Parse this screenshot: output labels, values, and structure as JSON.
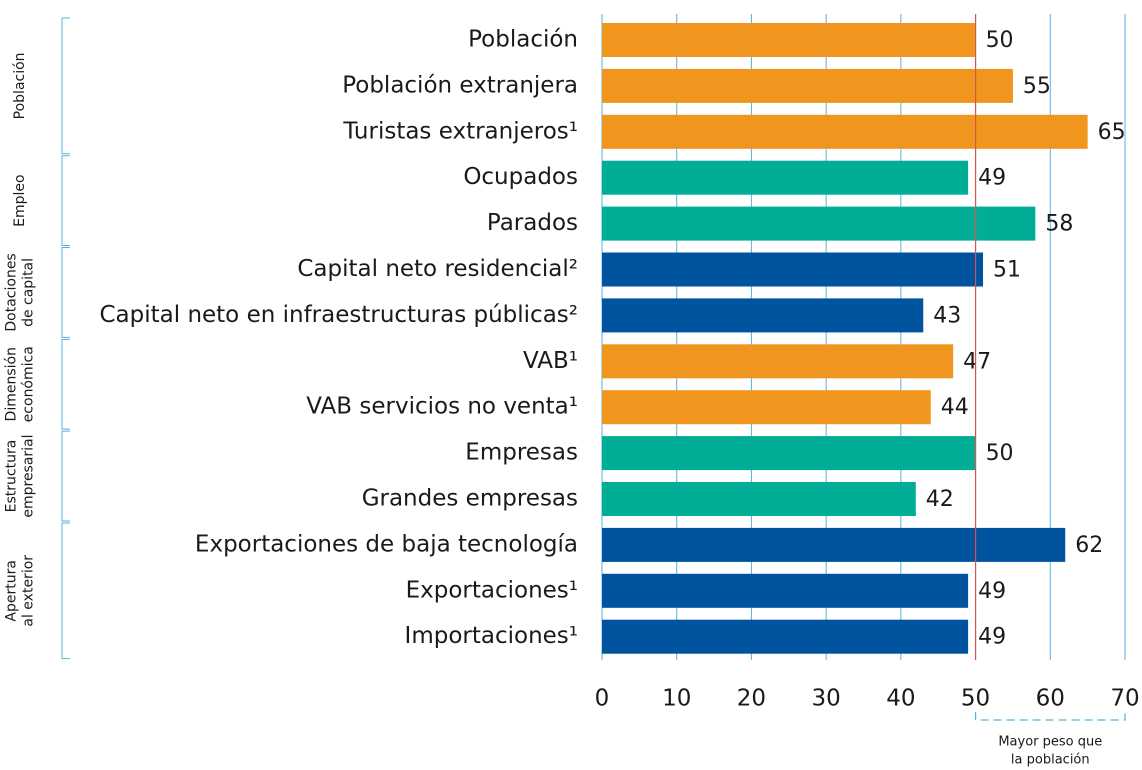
{
  "chart_data": {
    "type": "bar",
    "orientation": "horizontal",
    "groups": [
      {
        "label": [
          "Población"
        ],
        "color": "#f0961e",
        "categories": [
          "Población",
          "Población extranjera",
          "Turistas extranjeros¹"
        ],
        "values": [
          50,
          55,
          65
        ]
      },
      {
        "label": [
          "Empleo"
        ],
        "color": "#00ae98",
        "categories": [
          "Ocupados",
          "Parados"
        ],
        "values": [
          49,
          58
        ]
      },
      {
        "label": [
          "Dotaciones",
          "de capital"
        ],
        "color": "#00539e",
        "categories": [
          "Capital neto residencial²",
          "Capital neto en infraestructuras públicas²"
        ],
        "values": [
          51,
          43
        ]
      },
      {
        "label": [
          "Dimensión",
          "económica"
        ],
        "color": "#f0961e",
        "categories": [
          "VAB¹",
          "VAB servicios no venta¹"
        ],
        "values": [
          47,
          44
        ]
      },
      {
        "label": [
          "Estructura",
          "empresarial"
        ],
        "color": "#00ae98",
        "categories": [
          "Empresas",
          "Grandes empresas"
        ],
        "values": [
          50,
          42
        ]
      },
      {
        "label": [
          "Apertura",
          "al exterior"
        ],
        "color": "#00539e",
        "categories": [
          "Exportaciones de baja tecnología",
          "Exportaciones¹",
          "Importaciones¹"
        ],
        "values": [
          62,
          49,
          49
        ]
      }
    ],
    "xlim": [
      0,
      70
    ],
    "xticks": [
      0,
      10,
      20,
      30,
      40,
      50,
      60,
      70
    ],
    "grid": true,
    "reference_line": 50,
    "annotation": {
      "text": [
        "Mayor peso que",
        "la población"
      ],
      "range": [
        50,
        70
      ]
    }
  }
}
